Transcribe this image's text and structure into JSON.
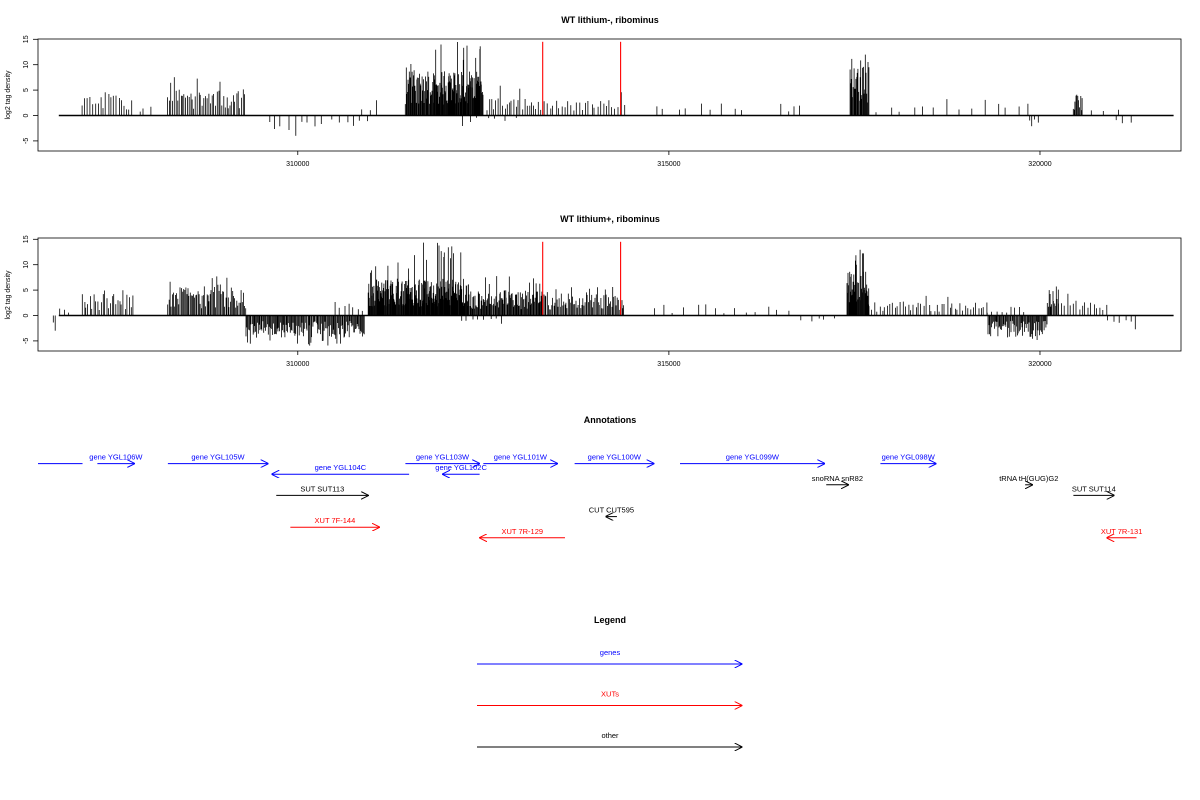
{
  "chart_data": [
    {
      "type": "bar",
      "title": "WT lithium-, ribominus",
      "xlabel": "",
      "ylabel": "log2 tag density",
      "xlim": [
        306500,
        321900
      ],
      "ylim": [
        -7,
        15
      ],
      "xticks": [
        310000,
        315000,
        320000
      ],
      "xtick_labels": [
        "310000",
        "315000",
        "320000"
      ],
      "yticks": [
        -5,
        0,
        5,
        10,
        15
      ],
      "ytick_labels": [
        "-5",
        "0",
        "5",
        "10",
        "15"
      ],
      "baseline": 0,
      "markers": [
        {
          "x": 313300,
          "y": 14.5,
          "color": "#ff0000"
        },
        {
          "x": 314350,
          "y": 14.5,
          "color": "#ff0000"
        }
      ],
      "positive_clusters": [
        {
          "start": 307100,
          "end": 307780,
          "mean": 3,
          "max": 4.8,
          "step": 35
        },
        {
          "start": 307850,
          "end": 308100,
          "mean": 1.5,
          "max": 3.5,
          "step": 90
        },
        {
          "start": 308250,
          "end": 309300,
          "mean": 3.8,
          "max": 8.5,
          "step": 22
        },
        {
          "start": 310850,
          "end": 311050,
          "mean": 2.5,
          "max": 3,
          "step": 100
        },
        {
          "start": 311450,
          "end": 311830,
          "mean": 6,
          "max": 11,
          "step": 9
        },
        {
          "start": 311830,
          "end": 312500,
          "mean": 6,
          "max": 14.5,
          "step": 7
        },
        {
          "start": 312550,
          "end": 313200,
          "mean": 2.5,
          "max": 6,
          "step": 30
        },
        {
          "start": 313200,
          "end": 314400,
          "mean": 2.2,
          "max": 5,
          "step": 40
        },
        {
          "start": 314800,
          "end": 316100,
          "mean": 1.8,
          "max": 3,
          "step": 150
        },
        {
          "start": 316500,
          "end": 316850,
          "mean": 2,
          "max": 3.2,
          "step": 90
        },
        {
          "start": 317440,
          "end": 317700,
          "mean": 7,
          "max": 12,
          "step": 9
        },
        {
          "start": 317800,
          "end": 319900,
          "mean": 1.6,
          "max": 3.5,
          "step": 160
        },
        {
          "start": 320450,
          "end": 320580,
          "mean": 3,
          "max": 5,
          "step": 12
        },
        {
          "start": 320650,
          "end": 321100,
          "mean": 1.5,
          "max": 3,
          "step": 180
        }
      ],
      "negative_clusters": [
        {
          "start": 309600,
          "end": 310400,
          "mean": -2,
          "max": -4,
          "step": 90
        },
        {
          "start": 310450,
          "end": 311000,
          "mean": -1.8,
          "max": -3.5,
          "step": 100
        },
        {
          "start": 312200,
          "end": 313000,
          "mean": -1,
          "max": -2.5,
          "step": 120
        },
        {
          "start": 319850,
          "end": 320000,
          "mean": -2,
          "max": -3,
          "step": 40
        },
        {
          "start": 321000,
          "end": 321300,
          "mean": -1.5,
          "max": -3.5,
          "step": 120
        }
      ]
    },
    {
      "type": "bar",
      "title": "WT lithium+, ribominus",
      "xlabel": "",
      "ylabel": "log2 tag density",
      "xlim": [
        306500,
        321900
      ],
      "ylim": [
        -7,
        15
      ],
      "xticks": [
        310000,
        315000,
        320000
      ],
      "xtick_labels": [
        "310000",
        "315000",
        "320000"
      ],
      "yticks": [
        -5,
        0,
        5,
        10,
        15
      ],
      "ytick_labels": [
        "-5",
        "0",
        "5",
        "10",
        "15"
      ],
      "baseline": 0,
      "markers": [
        {
          "x": 313300,
          "y": 14.5,
          "color": "#ff0000"
        },
        {
          "x": 314350,
          "y": 14.5,
          "color": "#ff0000"
        }
      ],
      "positive_clusters": [
        {
          "start": 306800,
          "end": 306900,
          "mean": 1,
          "max": 2,
          "step": 50
        },
        {
          "start": 307100,
          "end": 307780,
          "mean": 3,
          "max": 5,
          "step": 25
        },
        {
          "start": 308250,
          "end": 309300,
          "mean": 4,
          "max": 8,
          "step": 15
        },
        {
          "start": 310500,
          "end": 310900,
          "mean": 2,
          "max": 4,
          "step": 60
        },
        {
          "start": 310950,
          "end": 311500,
          "mean": 5,
          "max": 11,
          "step": 7
        },
        {
          "start": 311500,
          "end": 312300,
          "mean": 5,
          "max": 14.5,
          "step": 6
        },
        {
          "start": 312300,
          "end": 313300,
          "mean": 3.5,
          "max": 8,
          "step": 10
        },
        {
          "start": 313300,
          "end": 314400,
          "mean": 3,
          "max": 6,
          "step": 15
        },
        {
          "start": 314800,
          "end": 316700,
          "mean": 1.2,
          "max": 2.5,
          "step": 140
        },
        {
          "start": 317400,
          "end": 317700,
          "mean": 6,
          "max": 13,
          "step": 7
        },
        {
          "start": 317700,
          "end": 319300,
          "mean": 2,
          "max": 4,
          "step": 35
        },
        {
          "start": 319300,
          "end": 319800,
          "mean": 1.5,
          "max": 3,
          "step": 60
        },
        {
          "start": 320100,
          "end": 320250,
          "mean": 4,
          "max": 7,
          "step": 12
        },
        {
          "start": 320250,
          "end": 320900,
          "mean": 2,
          "max": 4.5,
          "step": 40
        }
      ],
      "negative_clusters": [
        {
          "start": 306700,
          "end": 306750,
          "mean": -2.5,
          "max": -3,
          "step": 30
        },
        {
          "start": 309300,
          "end": 310900,
          "mean": -3,
          "max": -6,
          "step": 12
        },
        {
          "start": 312200,
          "end": 312800,
          "mean": -1,
          "max": -2,
          "step": 80
        },
        {
          "start": 316800,
          "end": 317200,
          "mean": -0.8,
          "max": -1.5,
          "step": 100
        },
        {
          "start": 319300,
          "end": 320100,
          "mean": -3,
          "max": -5,
          "step": 12
        },
        {
          "start": 320900,
          "end": 321300,
          "mean": -1,
          "max": -3,
          "step": 80
        }
      ]
    },
    {
      "type": "table",
      "title": "Annotations",
      "xlim": [
        306500,
        321900
      ],
      "rows": 10,
      "features": [
        {
          "label": "",
          "start": 306500,
          "end": 307100,
          "strand": "none",
          "row": 1,
          "color": "#0000ff"
        },
        {
          "label": "gene YGL106W",
          "start": 307300,
          "end": 307800,
          "strand": "+",
          "row": 1,
          "color": "#0000ff"
        },
        {
          "label": "gene YGL105W",
          "start": 308250,
          "end": 309600,
          "strand": "+",
          "row": 1,
          "color": "#0000ff"
        },
        {
          "label": "gene YGL104C",
          "start": 309650,
          "end": 311500,
          "strand": "-",
          "row": 2,
          "color": "#0000ff"
        },
        {
          "label": "gene YGL103W",
          "start": 311450,
          "end": 312450,
          "strand": "+",
          "row": 1,
          "color": "#0000ff"
        },
        {
          "label": "gene YGL102C",
          "start": 311950,
          "end": 312450,
          "strand": "-",
          "row": 2,
          "color": "#0000ff"
        },
        {
          "label": "gene YGL101W",
          "start": 312500,
          "end": 313500,
          "strand": "+",
          "row": 1,
          "color": "#0000ff"
        },
        {
          "label": "gene YGL100W",
          "start": 313730,
          "end": 314800,
          "strand": "+",
          "row": 1,
          "color": "#0000ff"
        },
        {
          "label": "gene YGL099W",
          "start": 315150,
          "end": 317100,
          "strand": "+",
          "row": 1,
          "color": "#0000ff"
        },
        {
          "label": "gene YGL098W",
          "start": 317850,
          "end": 318600,
          "strand": "+",
          "row": 1,
          "color": "#0000ff"
        },
        {
          "label": "snoRNA snR82",
          "start": 317120,
          "end": 317420,
          "strand": "+",
          "row": 3,
          "color": "#000000"
        },
        {
          "label": "tRNA tH(GUG)G2",
          "start": 319800,
          "end": 319900,
          "strand": "+",
          "row": 3,
          "color": "#000000"
        },
        {
          "label": "SUT SUT113",
          "start": 309710,
          "end": 310950,
          "strand": "+",
          "row": 4,
          "color": "#000000"
        },
        {
          "label": "SUT SUT114",
          "start": 320450,
          "end": 321000,
          "strand": "+",
          "row": 4,
          "color": "#000000"
        },
        {
          "label": "CUT CUT595",
          "start": 314150,
          "end": 314300,
          "strand": "-",
          "row": 6,
          "color": "#000000"
        },
        {
          "label": "XUT 7F-144",
          "start": 309900,
          "end": 311100,
          "strand": "+",
          "row": 7,
          "color": "#ff0000"
        },
        {
          "label": "XUT 7R-129",
          "start": 312450,
          "end": 313600,
          "strand": "-",
          "row": 8,
          "color": "#ff0000"
        },
        {
          "label": "XUT 7R-131",
          "start": 320900,
          "end": 321300,
          "strand": "-",
          "row": 8,
          "color": "#ff0000"
        }
      ]
    }
  ],
  "legend": {
    "title": "Legend",
    "items": [
      {
        "label": "genes",
        "color": "#0000ff"
      },
      {
        "label": "XUTs",
        "color": "#ff0000"
      },
      {
        "label": "other",
        "color": "#000000"
      }
    ]
  }
}
